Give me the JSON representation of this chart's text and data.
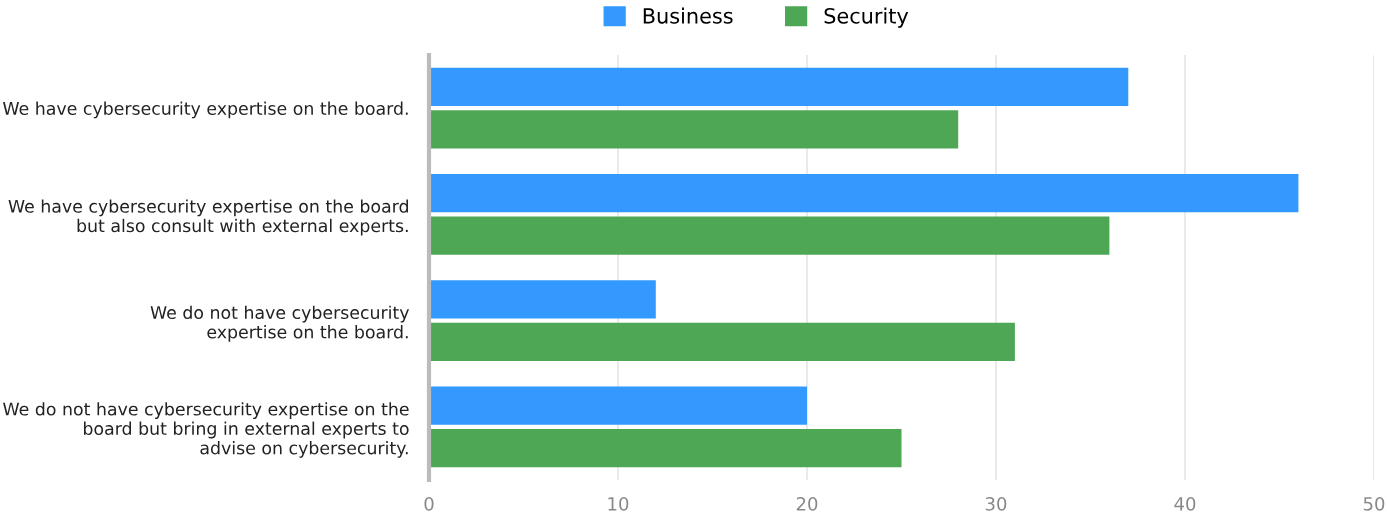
{
  "chart_data": {
    "type": "bar",
    "orientation": "horizontal",
    "categories": [
      "We have cybersecurity expertise on the board.",
      "We have cybersecurity expertise on the board\nbut also consult with external experts.",
      "We do not have cybersecurity\nexpertise on the board.",
      "We do not have cybersecurity expertise on the\nboard but bring in external experts to\nadvise on cybersecurity."
    ],
    "series": [
      {
        "name": "Business",
        "color": "#3399ff",
        "values": [
          37,
          46,
          12,
          20
        ]
      },
      {
        "name": "Security",
        "color": "#4ea755",
        "values": [
          28,
          36,
          31,
          25
        ]
      }
    ],
    "xlim": [
      0,
      50
    ],
    "xticks": [
      0,
      10,
      20,
      30,
      40,
      50
    ],
    "grid": "x",
    "legend": "top"
  }
}
